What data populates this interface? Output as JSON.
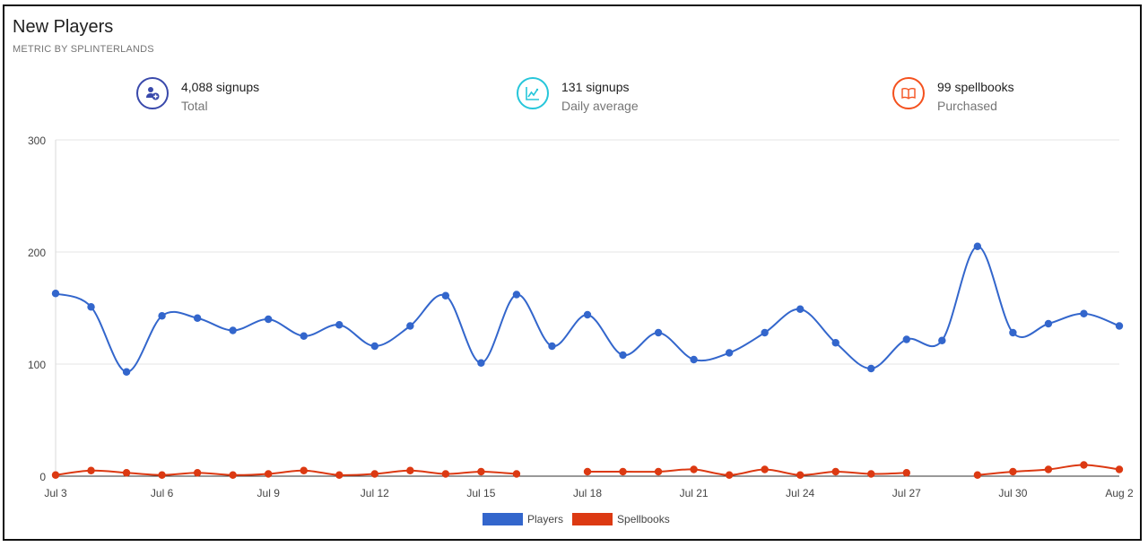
{
  "header": {
    "title": "New Players",
    "subtitle": "METRIC BY SPLINTERLANDS"
  },
  "stats": [
    {
      "value": "4,088 signups",
      "label": "Total",
      "icon": "add-user-icon",
      "color": "#3949ab"
    },
    {
      "value": "131 signups",
      "label": "Daily average",
      "icon": "trend-chart-icon",
      "color": "#26c6da"
    },
    {
      "value": "99 spellbooks",
      "label": "Purchased",
      "icon": "book-icon",
      "color": "#f4511e"
    }
  ],
  "chart_data": {
    "type": "line",
    "x_tick_labels": [
      "Jul 3",
      "Jul 6",
      "Jul 9",
      "Jul 12",
      "Jul 15",
      "Jul 18",
      "Jul 21",
      "Jul 24",
      "Jul 27",
      "Jul 30",
      "Aug 2"
    ],
    "x": [
      "Jul 3",
      "Jul 4",
      "Jul 5",
      "Jul 6",
      "Jul 7",
      "Jul 8",
      "Jul 9",
      "Jul 10",
      "Jul 11",
      "Jul 12",
      "Jul 13",
      "Jul 14",
      "Jul 15",
      "Jul 16",
      "Jul 17",
      "Jul 18",
      "Jul 19",
      "Jul 20",
      "Jul 21",
      "Jul 22",
      "Jul 23",
      "Jul 24",
      "Jul 25",
      "Jul 26",
      "Jul 27",
      "Jul 28",
      "Jul 29",
      "Jul 30",
      "Jul 31",
      "Aug 1",
      "Aug 2"
    ],
    "series": [
      {
        "name": "Players",
        "color": "#3366cc",
        "values": [
          163,
          151,
          93,
          143,
          141,
          130,
          140,
          125,
          135,
          116,
          134,
          161,
          101,
          162,
          116,
          144,
          108,
          128,
          104,
          110,
          128,
          149,
          119,
          96,
          122,
          121,
          205,
          128,
          136,
          145,
          134
        ]
      },
      {
        "name": "Spellbooks",
        "color": "#dc3912",
        "values": [
          1,
          5,
          3,
          1,
          3,
          1,
          2,
          5,
          1,
          2,
          5,
          2,
          4,
          2,
          null,
          4,
          4,
          4,
          6,
          1,
          6,
          1,
          4,
          2,
          3,
          null,
          1,
          4,
          6,
          10,
          6
        ]
      }
    ],
    "y_ticks": [
      0,
      100,
      200,
      300
    ],
    "ylim": [
      0,
      300
    ],
    "grid": true,
    "legend_position": "bottom"
  }
}
